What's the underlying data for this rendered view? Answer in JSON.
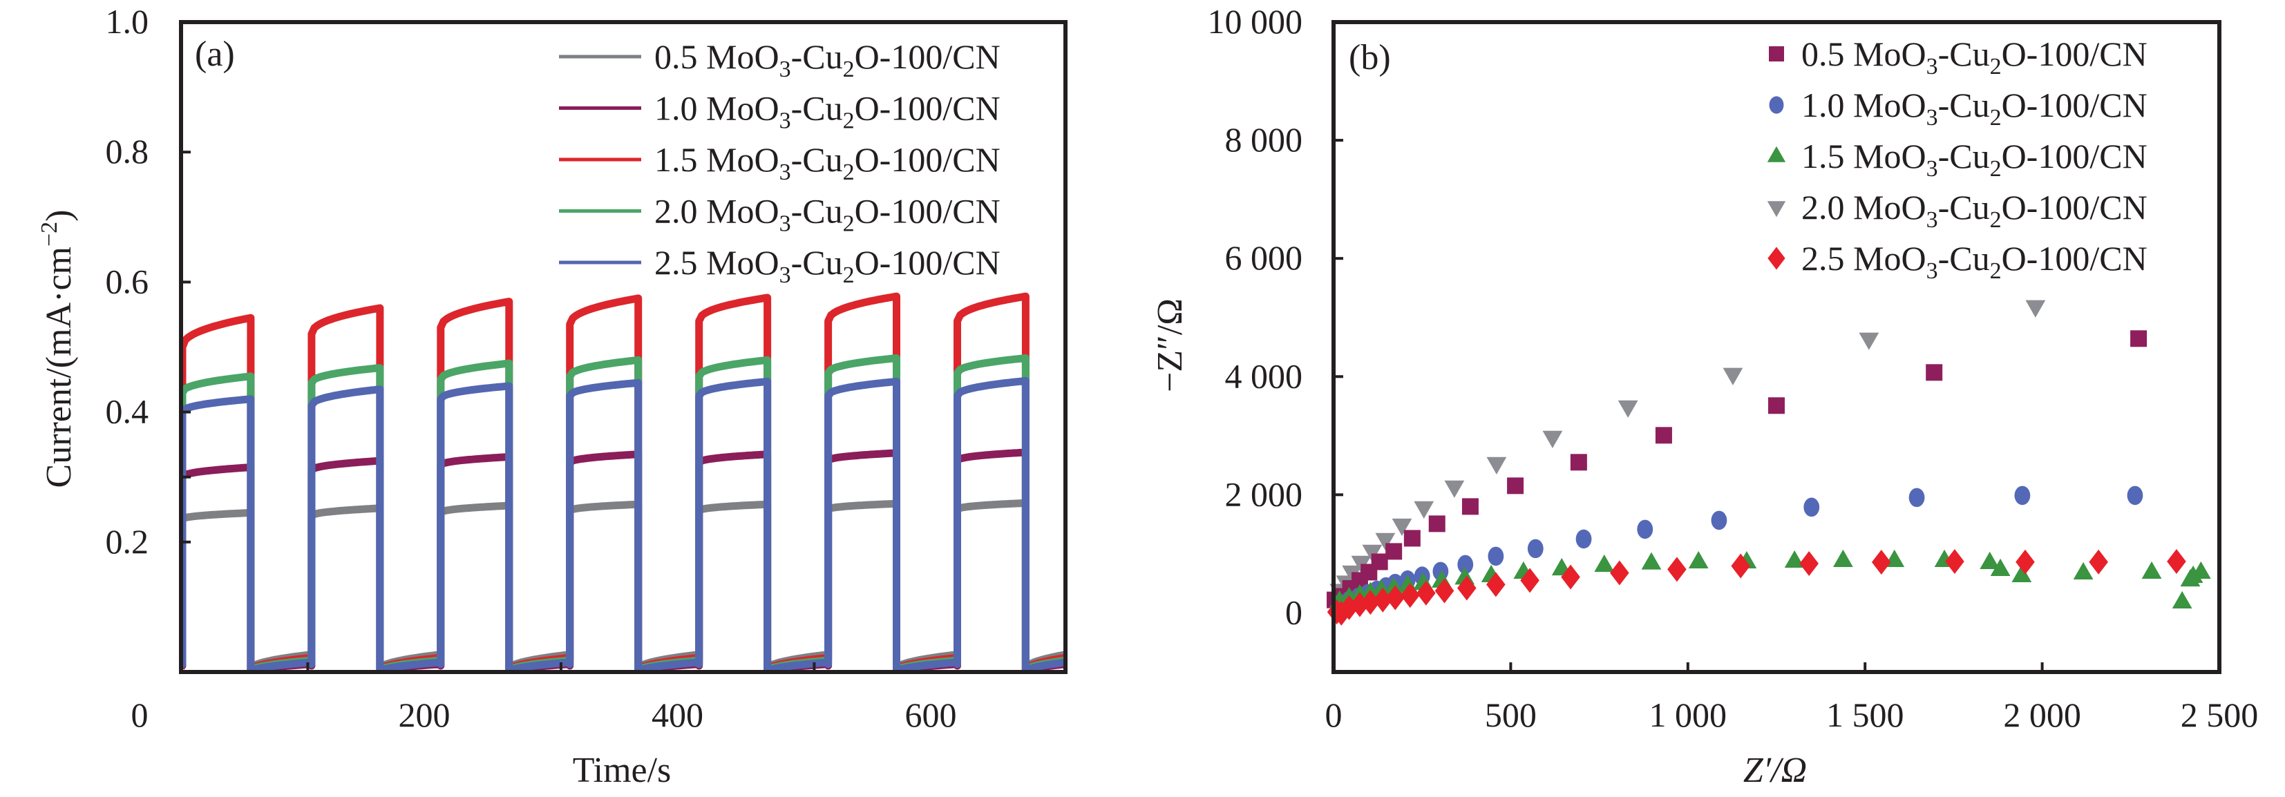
{
  "chart_data": [
    {
      "panel": "(a)",
      "type": "line",
      "title": "",
      "xlabel": "Time/s",
      "ylabel": "Current/(mA·cm⁻²)",
      "ylabel_parts": {
        "base": "Current/(mA·cm",
        "sup": "−2",
        "tail": ")"
      },
      "xlim": [
        8,
        707
      ],
      "ylim": [
        0,
        1.0
      ],
      "x_tick_labels": [
        {
          "value": 0,
          "label": "0"
        },
        {
          "value": 200,
          "label": "200"
        },
        {
          "value": 400,
          "label": "400"
        },
        {
          "value": 600,
          "label": "600"
        }
      ],
      "x_minor_ticks": [
        108,
        308,
        508
      ],
      "y_tick_labels": [
        {
          "value": 0.2,
          "label": "0.2"
        },
        {
          "value": 0.4,
          "label": "0.4"
        },
        {
          "value": 0.6,
          "label": "0.6"
        },
        {
          "value": 0.8,
          "label": "0.8"
        },
        {
          "value": 1.0,
          "label": "1.0"
        }
      ],
      "y_ticks": [
        0.2,
        0.3,
        0.4,
        0.6,
        0.8
      ],
      "grid": false,
      "legend_position": "top-right",
      "light_on_intervals_s": [
        [
          9,
          63
        ],
        [
          111,
          165
        ],
        [
          213,
          267
        ],
        [
          315,
          369
        ],
        [
          417,
          471
        ],
        [
          519,
          573
        ],
        [
          621,
          675
        ]
      ],
      "series": [
        {
          "name": "0.5 MoO3-Cu2O-100/CN",
          "label_parts": [
            "0.5 MoO",
            "3",
            "-Cu",
            "2",
            "O-100/CN"
          ],
          "color": "#7f8084",
          "on_current": [
            [
              0.235,
              0.245
            ],
            [
              0.24,
              0.252
            ],
            [
              0.245,
              0.256
            ],
            [
              0.248,
              0.258
            ],
            [
              0.248,
              0.258
            ],
            [
              0.25,
              0.259
            ],
            [
              0.25,
              0.26
            ]
          ],
          "dark_current": [
            0.005,
            0.027
          ]
        },
        {
          "name": "1.0 MoO3-Cu2O-100/CN",
          "label_parts": [
            "1.0 MoO",
            "3",
            "-Cu",
            "2",
            "O-100/CN"
          ],
          "color": "#8a1d5a",
          "on_current": [
            [
              0.3,
              0.315
            ],
            [
              0.31,
              0.325
            ],
            [
              0.318,
              0.331
            ],
            [
              0.322,
              0.335
            ],
            [
              0.322,
              0.335
            ],
            [
              0.325,
              0.337
            ],
            [
              0.325,
              0.338
            ]
          ],
          "dark_current": [
            0.0,
            0.012
          ]
        },
        {
          "name": "1.5 MoO3-Cu2O-100/CN",
          "label_parts": [
            "1.5 MoO",
            "3",
            "-Cu",
            "2",
            "O-100/CN"
          ],
          "color": "#dc262b",
          "on_current": [
            [
              0.5,
              0.545
            ],
            [
              0.52,
              0.56
            ],
            [
              0.53,
              0.57
            ],
            [
              0.535,
              0.575
            ],
            [
              0.54,
              0.576
            ],
            [
              0.54,
              0.578
            ],
            [
              0.54,
              0.578
            ]
          ],
          "dark_current": [
            0.003,
            0.022
          ]
        },
        {
          "name": "2.0 MoO3-Cu2O-100/CN",
          "label_parts": [
            "2.0 MoO",
            "3",
            "-Cu",
            "2",
            "O-100/CN"
          ],
          "color": "#4aa567",
          "on_current": [
            [
              0.43,
              0.455
            ],
            [
              0.445,
              0.468
            ],
            [
              0.45,
              0.475
            ],
            [
              0.455,
              0.48
            ],
            [
              0.455,
              0.48
            ],
            [
              0.46,
              0.483
            ],
            [
              0.46,
              0.483
            ]
          ],
          "dark_current": [
            0.002,
            0.018
          ]
        },
        {
          "name": "2.5 MoO3-Cu2O-100/CN",
          "label_parts": [
            "2.5 MoO",
            "3",
            "-Cu",
            "2",
            "O-100/CN"
          ],
          "color": "#5366b0",
          "on_current": [
            [
              0.4,
              0.42
            ],
            [
              0.41,
              0.435
            ],
            [
              0.42,
              0.44
            ],
            [
              0.425,
              0.445
            ],
            [
              0.425,
              0.447
            ],
            [
              0.425,
              0.447
            ],
            [
              0.425,
              0.448
            ]
          ],
          "dark_current": [
            0.0,
            0.015
          ]
        }
      ]
    },
    {
      "panel": "(b)",
      "type": "scatter",
      "title": "",
      "xlabel": "Z′/Ω",
      "ylabel": "−Z″/Ω",
      "xlim": [
        0,
        2500
      ],
      "ylim": [
        -1000,
        10000
      ],
      "x_tick_labels": [
        {
          "value": 0,
          "label": "0"
        },
        {
          "value": 500,
          "label": "500"
        },
        {
          "value": 1000,
          "label": "1 000"
        },
        {
          "value": 1500,
          "label": "1 500"
        },
        {
          "value": 2000,
          "label": "2 000"
        },
        {
          "value": 2500,
          "label": "2 500"
        }
      ],
      "x_ticks": [
        500,
        1000,
        1500,
        2000
      ],
      "y_tick_labels": [
        {
          "value": 0,
          "label": "0"
        },
        {
          "value": 2000,
          "label": "2 000"
        },
        {
          "value": 4000,
          "label": "4 000"
        },
        {
          "value": 6000,
          "label": "6 000"
        },
        {
          "value": 8000,
          "label": "8 000"
        },
        {
          "value": 10000,
          "label": "10 000"
        }
      ],
      "y_ticks": [
        2000,
        4000,
        6000,
        8000
      ],
      "grid": false,
      "legend_position": "top-right",
      "series": [
        {
          "name": "0.5 MoO3-Cu2O-100/CN",
          "label_parts": [
            "0.5 MoO",
            "3",
            "-Cu",
            "2",
            "O-100/CN"
          ],
          "marker": "square",
          "color": "#8e1f5c",
          "x": [
            4,
            22,
            48,
            74,
            100,
            130,
            170,
            222,
            292,
            386,
            513,
            692,
            932,
            1250,
            1695,
            2272
          ],
          "y": [
            220,
            280,
            415,
            550,
            690,
            865,
            1041,
            1263,
            1509,
            1801,
            2152,
            2550,
            3006,
            3509,
            4070,
            4643
          ]
        },
        {
          "name": "1.0 MoO3-Cu2O-100/CN",
          "label_parts": [
            "1.0 MoO",
            "3",
            "-Cu",
            "2",
            "O-100/CN"
          ],
          "marker": "circle",
          "color": "#5468b8",
          "x": [
            17,
            43,
            70,
            96,
            122,
            148,
            174,
            209,
            250,
            302,
            372,
            458,
            570,
            706,
            879,
            1088,
            1349,
            1646,
            1944,
            2262
          ],
          "y": [
            150,
            209,
            267,
            326,
            384,
            443,
            500,
            558,
            624,
            702,
            819,
            959,
            1088,
            1251,
            1415,
            1567,
            1790,
            1953,
            1988,
            1988
          ]
        },
        {
          "name": "1.5 MoO3-Cu2O-100/CN",
          "label_parts": [
            "1.5 MoO",
            "3",
            "-Cu",
            "2",
            "O-100/CN"
          ],
          "marker": "triangle-up",
          "color": "#3a9440",
          "x": [
            17,
            44,
            74,
            104,
            135,
            170,
            209,
            253,
            305,
            370,
            445,
            536,
            644,
            764,
            897,
            1030,
            1166,
            1301,
            1438,
            1583,
            1724,
            1852,
            1882,
            1942,
            2116,
            2309,
            2395,
            2418,
            2426,
            2448
          ],
          "y": [
            200,
            259,
            305,
            344,
            383,
            422,
            461,
            500,
            540,
            592,
            632,
            690,
            748,
            807,
            846,
            865,
            865,
            877,
            889,
            889,
            889,
            854,
            737,
            632,
            678,
            690,
            187,
            560,
            620,
            690
          ]
        },
        {
          "name": "2.0 MoO3-Cu2O-100/CN",
          "label_parts": [
            "2.0 MoO",
            "3",
            "-Cu",
            "2",
            "O-100/CN"
          ],
          "marker": "triangle-down",
          "color": "#8c8d93",
          "x": [
            17,
            35,
            52,
            78,
            109,
            146,
            193,
            255,
            341,
            460,
            618,
            831,
            1127,
            1511,
            1981
          ],
          "y": [
            380,
            520,
            690,
            854,
            1041,
            1240,
            1485,
            1778,
            2129,
            2526,
            2970,
            3485,
            4035,
            4632,
            5181
          ]
        },
        {
          "name": "2.5 MoO3-Cu2O-100/CN",
          "label_parts": [
            "2.5 MoO",
            "3",
            "-Cu",
            "2",
            "O-100/CN"
          ],
          "marker": "diamond",
          "color": "#e8202a",
          "x": [
            9,
            22,
            44,
            74,
            104,
            139,
            174,
            216,
            261,
            313,
            376,
            458,
            554,
            669,
            807,
            969,
            1149,
            1342,
            1546,
            1753,
            1952,
            2159,
            2379
          ],
          "y": [
            15,
            -5,
            90,
            140,
            179,
            218,
            257,
            296,
            335,
            374,
            421,
            480,
            550,
            608,
            678,
            737,
            795,
            836,
            858,
            870,
            862,
            862,
            870
          ]
        }
      ]
    }
  ]
}
